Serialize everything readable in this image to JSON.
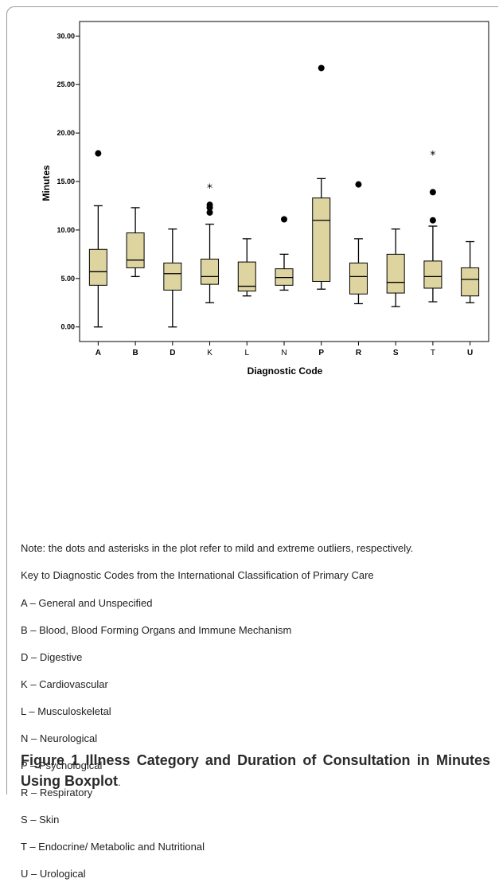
{
  "chart_data": {
    "type": "boxplot",
    "xlabel": "Diagnostic Code",
    "ylabel": "Minutes",
    "ylim": [
      -1.5,
      31.5
    ],
    "yticks": [
      "0.00",
      "5.00",
      "10.00",
      "15.00",
      "20.00",
      "25.00",
      "30.00"
    ],
    "ytick_values": [
      0,
      5,
      10,
      15,
      20,
      25,
      30
    ],
    "grid": false,
    "box_color": "#ddd4a0",
    "categories": [
      {
        "code": "A",
        "bold": true,
        "whisker_low": 0.0,
        "q1": 4.3,
        "median": 5.7,
        "q3": 8.0,
        "whisker_high": 12.5,
        "mild_outliers": [
          17.9
        ],
        "extreme_outliers": []
      },
      {
        "code": "B",
        "bold": true,
        "whisker_low": 5.2,
        "q1": 6.1,
        "median": 6.9,
        "q3": 9.7,
        "whisker_high": 12.3,
        "mild_outliers": [],
        "extreme_outliers": []
      },
      {
        "code": "D",
        "bold": true,
        "whisker_low": 0.0,
        "q1": 3.8,
        "median": 5.5,
        "q3": 6.6,
        "whisker_high": 10.1,
        "mild_outliers": [],
        "extreme_outliers": []
      },
      {
        "code": "K",
        "bold": false,
        "whisker_low": 2.5,
        "q1": 4.4,
        "median": 5.2,
        "q3": 7.0,
        "whisker_high": 10.6,
        "mild_outliers": [
          11.8,
          12.3,
          12.6
        ],
        "extreme_outliers": [
          14.6
        ]
      },
      {
        "code": "L",
        "bold": false,
        "whisker_low": 3.2,
        "q1": 3.7,
        "median": 4.2,
        "q3": 6.7,
        "whisker_high": 9.1,
        "mild_outliers": [],
        "extreme_outliers": []
      },
      {
        "code": "N",
        "bold": false,
        "whisker_low": 3.8,
        "q1": 4.3,
        "median": 5.1,
        "q3": 6.0,
        "whisker_high": 7.5,
        "mild_outliers": [
          11.1
        ],
        "extreme_outliers": []
      },
      {
        "code": "P",
        "bold": true,
        "whisker_low": 3.9,
        "q1": 4.7,
        "median": 11.0,
        "q3": 13.3,
        "whisker_high": 15.3,
        "mild_outliers": [
          26.7
        ],
        "extreme_outliers": []
      },
      {
        "code": "R",
        "bold": true,
        "whisker_low": 2.4,
        "q1": 3.4,
        "median": 5.2,
        "q3": 6.6,
        "whisker_high": 9.1,
        "mild_outliers": [
          14.7
        ],
        "extreme_outliers": []
      },
      {
        "code": "S",
        "bold": true,
        "whisker_low": 2.1,
        "q1": 3.5,
        "median": 4.6,
        "q3": 7.5,
        "whisker_high": 10.1,
        "mild_outliers": [],
        "extreme_outliers": []
      },
      {
        "code": "T",
        "bold": false,
        "whisker_low": 2.6,
        "q1": 4.0,
        "median": 5.2,
        "q3": 6.8,
        "whisker_high": 10.4,
        "mild_outliers": [
          11.0,
          13.9
        ],
        "extreme_outliers": [
          18.0
        ]
      },
      {
        "code": "U",
        "bold": true,
        "whisker_low": 2.5,
        "q1": 3.2,
        "median": 4.9,
        "q3": 6.1,
        "whisker_high": 8.8,
        "mild_outliers": [],
        "extreme_outliers": []
      }
    ]
  },
  "note": "Note: the dots and asterisks in the plot refer to mild and extreme outliers, respectively.",
  "key_title": "Key to Diagnostic Codes from the International Classification of Primary Care",
  "key_items": [
    "A – General and Unspecified",
    "B – Blood, Blood Forming Organs and Immune Mechanism",
    "D – Digestive",
    "K – Cardiovascular",
    "L – Musculoskeletal",
    "N – Neurological",
    "P – Psychological",
    "R – Respiratory",
    "S – Skin",
    "T – Endocrine/ Metabolic and Nutritional",
    "U – Urological"
  ],
  "caption": {
    "label": "Figure 1",
    "title": "Illness Category and Duration of Consultation in Minutes Using Boxplot",
    "end": "."
  }
}
